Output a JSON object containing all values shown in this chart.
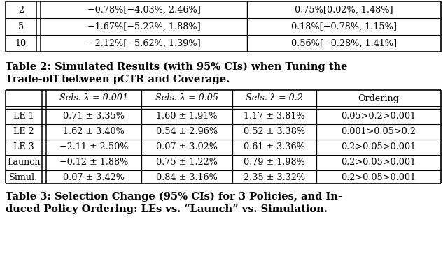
{
  "table2_caption_line1": "Table 2: Simulated Results (with 95% CIs) when Tuning the",
  "table2_caption_line2": "Trade-off between pCTR and Coverage.",
  "table2_rows": [
    {
      "col0": "2",
      "col1": "−0.78%[−4.03%, 2.46%]",
      "col2": "0.75%[0.02%, 1.48%]"
    },
    {
      "col0": "5",
      "col1": "−1.67%[−5.22%, 1.88%]",
      "col2": "0.18%[−0.78%, 1.15%]"
    },
    {
      "col0": "10",
      "col1": "−2.12%[−5.62%, 1.39%]",
      "col2": "0.56%[−0.28%, 1.41%]"
    }
  ],
  "table3_caption_line1": "Table 3: Selection Change (95% CIs) for 3 Policies, and In-",
  "table3_caption_line2": "duced Policy Ordering: LEs vs. “Launch” vs. Simulation.",
  "table3_headers": [
    "",
    "Sels. λ = 0.001",
    "Sels. λ = 0.05",
    "Sels. λ = 0.2",
    "Ordering"
  ],
  "table3_rows": [
    [
      "LE 1",
      "0.71 ± 3.35%",
      "1.60 ± 1.91%",
      "1.17 ± 3.81%",
      "0.05>0.2>0.001"
    ],
    [
      "LE 2",
      "1.62 ± 3.40%",
      "0.54 ± 2.96%",
      "0.52 ± 3.38%",
      "0.001>0.05>0.2"
    ],
    [
      "LE 3",
      "−2.11 ± 2.50%",
      "0.07 ± 3.02%",
      "0.61 ± 3.36%",
      "0.2>0.05>0.001"
    ],
    [
      "Launch",
      "−0.12 ± 1.88%",
      "0.75 ± 1.22%",
      "0.79 ± 1.98%",
      "0.2>0.05>0.001"
    ],
    [
      "Simul.",
      "0.07 ± 3.42%",
      "0.84 ± 3.16%",
      "2.35 ± 3.32%",
      "0.2>0.05>0.001"
    ]
  ],
  "bg_color": "#ffffff",
  "text_color": "#000000",
  "data_font_size": 9.2,
  "caption_font_size": 10.5,
  "header_font_size": 9.2,
  "fig_width": 6.4,
  "fig_height": 3.87
}
